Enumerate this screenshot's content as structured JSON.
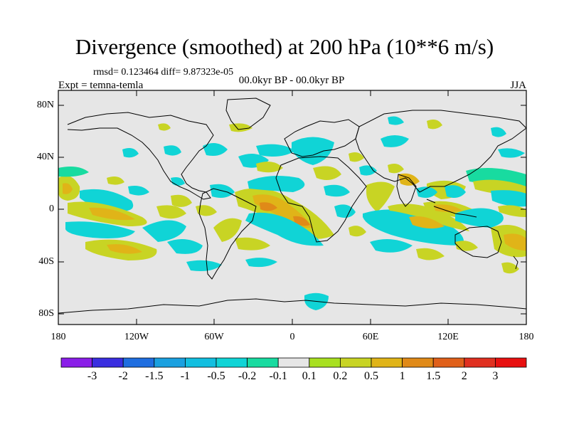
{
  "title": "Divergence (smoothed) at 200 hPa (10**6 m/s)",
  "stats": "rmsd= 0.123464 diff= 9.87323e-05",
  "experiment": "Expt = temna-temla",
  "period": "00.0kyr BP - 00.0kyr BP",
  "season": "JJA",
  "lat_labels": [
    "80N",
    "40N",
    "0",
    "40S",
    "80S"
  ],
  "lon_labels": [
    "180",
    "120W",
    "60W",
    "0",
    "60E",
    "120E",
    "180"
  ],
  "colorbar": {
    "levels": [
      "-3",
      "-2",
      "-1.5",
      "-1",
      "-0.5",
      "-0.2",
      "-0.1",
      "0.1",
      "0.2",
      "0.5",
      "1",
      "1.5",
      "2",
      "3"
    ],
    "colors": [
      "#8a1ee8",
      "#3a2ee0",
      "#1f6ee0",
      "#1aa0e0",
      "#12bfe0",
      "#10d4d6",
      "#18dba0",
      "#e6e6e6",
      "#a8e020",
      "#c8d424",
      "#e0b418",
      "#e08a18",
      "#e0601a",
      "#e03020",
      "#e81010"
    ]
  },
  "colors": {
    "background": "#e6e6e6",
    "coast": "#000000"
  }
}
